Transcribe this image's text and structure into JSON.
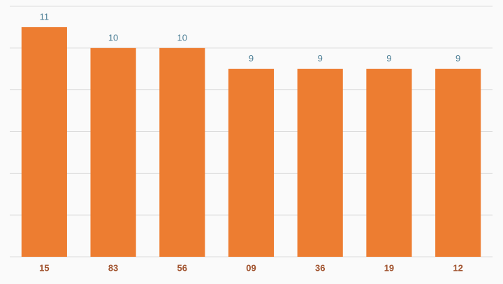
{
  "chart_data": {
    "type": "bar",
    "categories": [
      "15",
      "83",
      "56",
      "09",
      "36",
      "19",
      "12"
    ],
    "values": [
      11,
      10,
      10,
      9,
      9,
      9,
      9
    ],
    "color": "#ed7d31",
    "ylim": [
      0,
      12
    ],
    "yticks": [
      0,
      2,
      4,
      6,
      8,
      10,
      12
    ],
    "grid": true,
    "show_ytick_labels": false,
    "show_value_labels": true
  }
}
